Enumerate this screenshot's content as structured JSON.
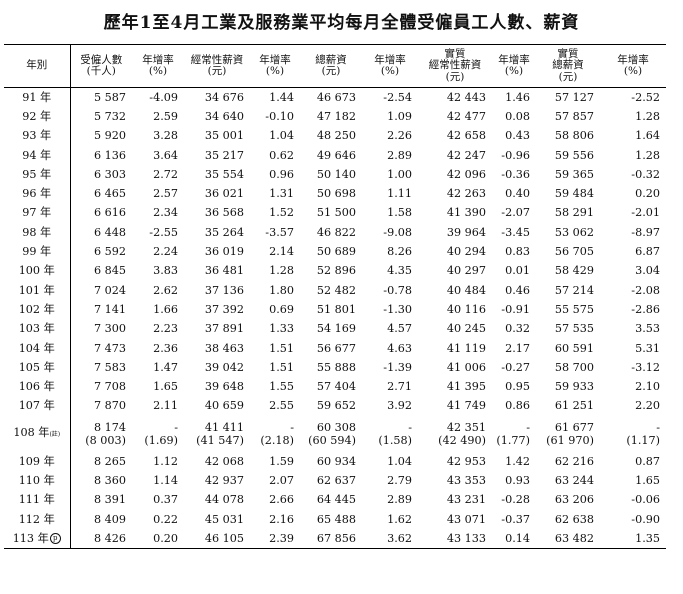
{
  "title": "歷年1至4月工業及服務業平均每月全體受僱員工人數、薪資",
  "headers": {
    "year": "年別",
    "employees_1": "受僱人數",
    "employees_2": "(千人)",
    "growth_1": "年增率",
    "growth_2": "(%)",
    "regular_1": "經常性薪資",
    "regular_2": "(元)",
    "total_1": "總薪資",
    "total_2": "(元)",
    "real_regular_1": "實質",
    "real_regular_2": "經常性薪資",
    "real_regular_3": "(元)",
    "real_total_1": "實質",
    "real_total_2": "總薪資",
    "real_total_3": "(元)"
  },
  "rows": [
    {
      "year": "91 年",
      "emp": "5 587",
      "emp_g": "-4.09",
      "reg": "34 676",
      "reg_g": "1.44",
      "tot": "46 673",
      "tot_g": "-2.54",
      "rreg": "42 443",
      "rreg_g": "1.46",
      "rtot": "57 127",
      "rtot_g": "-2.52"
    },
    {
      "year": "92 年",
      "emp": "5 732",
      "emp_g": "2.59",
      "reg": "34 640",
      "reg_g": "-0.10",
      "tot": "47 182",
      "tot_g": "1.09",
      "rreg": "42 477",
      "rreg_g": "0.08",
      "rtot": "57 857",
      "rtot_g": "1.28"
    },
    {
      "year": "93 年",
      "emp": "5 920",
      "emp_g": "3.28",
      "reg": "35 001",
      "reg_g": "1.04",
      "tot": "48 250",
      "tot_g": "2.26",
      "rreg": "42 658",
      "rreg_g": "0.43",
      "rtot": "58 806",
      "rtot_g": "1.64"
    },
    {
      "year": "94 年",
      "emp": "6 136",
      "emp_g": "3.64",
      "reg": "35 217",
      "reg_g": "0.62",
      "tot": "49 646",
      "tot_g": "2.89",
      "rreg": "42 247",
      "rreg_g": "-0.96",
      "rtot": "59 556",
      "rtot_g": "1.28"
    },
    {
      "year": "95 年",
      "emp": "6 303",
      "emp_g": "2.72",
      "reg": "35 554",
      "reg_g": "0.96",
      "tot": "50 140",
      "tot_g": "1.00",
      "rreg": "42 096",
      "rreg_g": "-0.36",
      "rtot": "59 365",
      "rtot_g": "-0.32"
    },
    {
      "year": "96 年",
      "emp": "6 465",
      "emp_g": "2.57",
      "reg": "36 021",
      "reg_g": "1.31",
      "tot": "50 698",
      "tot_g": "1.11",
      "rreg": "42 263",
      "rreg_g": "0.40",
      "rtot": "59 484",
      "rtot_g": "0.20"
    },
    {
      "year": "97 年",
      "emp": "6 616",
      "emp_g": "2.34",
      "reg": "36 568",
      "reg_g": "1.52",
      "tot": "51 500",
      "tot_g": "1.58",
      "rreg": "41 390",
      "rreg_g": "-2.07",
      "rtot": "58 291",
      "rtot_g": "-2.01"
    },
    {
      "year": "98 年",
      "emp": "6 448",
      "emp_g": "-2.55",
      "reg": "35 264",
      "reg_g": "-3.57",
      "tot": "46 822",
      "tot_g": "-9.08",
      "rreg": "39 964",
      "rreg_g": "-3.45",
      "rtot": "53 062",
      "rtot_g": "-8.97"
    },
    {
      "year": "99 年",
      "emp": "6 592",
      "emp_g": "2.24",
      "reg": "36 019",
      "reg_g": "2.14",
      "tot": "50 689",
      "tot_g": "8.26",
      "rreg": "40 294",
      "rreg_g": "0.83",
      "rtot": "56 705",
      "rtot_g": "6.87"
    },
    {
      "year": "100 年",
      "emp": "6 845",
      "emp_g": "3.83",
      "reg": "36 481",
      "reg_g": "1.28",
      "tot": "52 896",
      "tot_g": "4.35",
      "rreg": "40 297",
      "rreg_g": "0.01",
      "rtot": "58 429",
      "rtot_g": "3.04"
    },
    {
      "year": "101 年",
      "emp": "7 024",
      "emp_g": "2.62",
      "reg": "37 136",
      "reg_g": "1.80",
      "tot": "52 482",
      "tot_g": "-0.78",
      "rreg": "40 484",
      "rreg_g": "0.46",
      "rtot": "57 214",
      "rtot_g": "-2.08"
    },
    {
      "year": "102 年",
      "emp": "7 141",
      "emp_g": "1.66",
      "reg": "37 392",
      "reg_g": "0.69",
      "tot": "51 801",
      "tot_g": "-1.30",
      "rreg": "40 116",
      "rreg_g": "-0.91",
      "rtot": "55 575",
      "rtot_g": "-2.86"
    },
    {
      "year": "103 年",
      "emp": "7 300",
      "emp_g": "2.23",
      "reg": "37 891",
      "reg_g": "1.33",
      "tot": "54 169",
      "tot_g": "4.57",
      "rreg": "40 245",
      "rreg_g": "0.32",
      "rtot": "57 535",
      "rtot_g": "3.53"
    },
    {
      "year": "104 年",
      "emp": "7 473",
      "emp_g": "2.36",
      "reg": "38 463",
      "reg_g": "1.51",
      "tot": "56 677",
      "tot_g": "4.63",
      "rreg": "41 119",
      "rreg_g": "2.17",
      "rtot": "60 591",
      "rtot_g": "5.31"
    },
    {
      "year": "105 年",
      "emp": "7 583",
      "emp_g": "1.47",
      "reg": "39 042",
      "reg_g": "1.51",
      "tot": "55 888",
      "tot_g": "-1.39",
      "rreg": "41 006",
      "rreg_g": "-0.27",
      "rtot": "58 700",
      "rtot_g": "-3.12"
    },
    {
      "year": "106 年",
      "emp": "7 708",
      "emp_g": "1.65",
      "reg": "39 648",
      "reg_g": "1.55",
      "tot": "57 404",
      "tot_g": "2.71",
      "rreg": "41 395",
      "rreg_g": "0.95",
      "rtot": "59 933",
      "rtot_g": "2.10"
    },
    {
      "year": "107 年",
      "emp": "7 870",
      "emp_g": "2.11",
      "reg": "40 659",
      "reg_g": "2.55",
      "tot": "59 652",
      "tot_g": "3.92",
      "rreg": "41 749",
      "rreg_g": "0.86",
      "rtot": "61 251",
      "rtot_g": "2.20"
    }
  ],
  "row_108": {
    "year": "108 年",
    "note": "(註)",
    "emp": "8 174",
    "emp_b": "(8 003)",
    "emp_g": "-",
    "emp_g_b": "(1.69)",
    "reg": "41 411",
    "reg_b": "(41 547)",
    "reg_g": "-",
    "reg_g_b": "(2.18)",
    "tot": "60 308",
    "tot_b": "(60 594)",
    "tot_g": "-",
    "tot_g_b": "(1.58)",
    "rreg": "42 351",
    "rreg_b": "(42 490)",
    "rreg_g": "-",
    "rreg_g_b": "(1.77)",
    "rtot": "61 677",
    "rtot_b": "(61 970)",
    "rtot_g": "-",
    "rtot_g_b": "(1.17)"
  },
  "rows_after": [
    {
      "year": "109 年",
      "emp": "8 265",
      "emp_g": "1.12",
      "reg": "42 068",
      "reg_g": "1.59",
      "tot": "60 934",
      "tot_g": "1.04",
      "rreg": "42 953",
      "rreg_g": "1.42",
      "rtot": "62 216",
      "rtot_g": "0.87"
    },
    {
      "year": "110 年",
      "emp": "8 360",
      "emp_g": "1.14",
      "reg": "42 937",
      "reg_g": "2.07",
      "tot": "62 637",
      "tot_g": "2.79",
      "rreg": "43 353",
      "rreg_g": "0.93",
      "rtot": "63 244",
      "rtot_g": "1.65"
    },
    {
      "year": "111 年",
      "emp": "8 391",
      "emp_g": "0.37",
      "reg": "44 078",
      "reg_g": "2.66",
      "tot": "64 445",
      "tot_g": "2.89",
      "rreg": "43 231",
      "rreg_g": "-0.28",
      "rtot": "63 206",
      "rtot_g": "-0.06"
    },
    {
      "year": "112 年",
      "emp": "8 409",
      "emp_g": "0.22",
      "reg": "45 031",
      "reg_g": "2.16",
      "tot": "65 488",
      "tot_g": "1.62",
      "rreg": "43 071",
      "rreg_g": "-0.37",
      "rtot": "62 638",
      "rtot_g": "-0.90"
    }
  ],
  "row_113": {
    "year": "113 年",
    "mark": "p",
    "emp": "8 426",
    "emp_g": "0.20",
    "reg": "46 105",
    "reg_g": "2.39",
    "tot": "67 856",
    "tot_g": "3.62",
    "rreg": "43 133",
    "rreg_g": "0.14",
    "rtot": "63 482",
    "rtot_g": "1.35"
  }
}
